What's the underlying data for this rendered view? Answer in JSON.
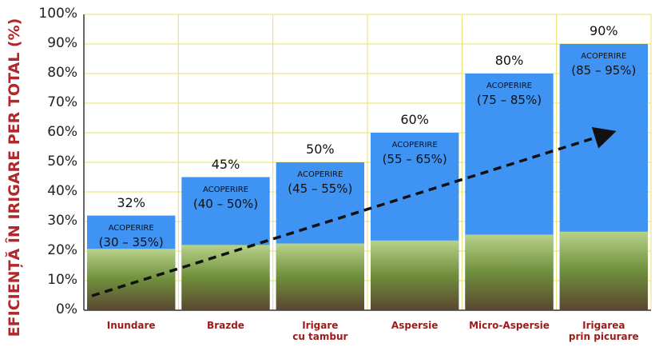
{
  "chart_data": {
    "type": "bar",
    "y_axis_label": "EFICIENȚĂ ÎN IRIGARE PER TOTAL (%)",
    "categories": [
      "Inundare",
      "Brazde",
      "Irigare\ncu tambur",
      "Aspersie",
      "Micro-Aspersie",
      "Irigarea\nprin picurare"
    ],
    "values": [
      32,
      45,
      50,
      60,
      80,
      90
    ],
    "value_labels": [
      "32%",
      "45%",
      "50%",
      "60%",
      "80%",
      "90%"
    ],
    "annotations": [
      {
        "title": "ACOPERIRE",
        "range": "(30 – 35%)"
      },
      {
        "title": "ACOPERIRE",
        "range": "(40 – 50%)"
      },
      {
        "title": "ACOPERIRE",
        "range": "(45 – 55%)"
      },
      {
        "title": "ACOPERIRE",
        "range": "(55 – 65%)"
      },
      {
        "title": "ACOPERIRE",
        "range": "(75 – 85%)"
      },
      {
        "title": "ACOPERIRE",
        "range": "(85 – 95%)"
      }
    ],
    "color": "#3f93f2",
    "ylim": [
      0,
      100
    ],
    "yticks": [
      {
        "value": 0,
        "label": "0%"
      },
      {
        "value": 10,
        "label": "10%"
      },
      {
        "value": 20,
        "label": "20%"
      },
      {
        "value": 30,
        "label": "30%"
      },
      {
        "value": 40,
        "label": "40%"
      },
      {
        "value": 50,
        "label": "50%"
      },
      {
        "value": 60,
        "label": "60%"
      },
      {
        "value": 70,
        "label": "70%"
      },
      {
        "value": 80,
        "label": "80%"
      },
      {
        "value": 90,
        "label": "90%"
      },
      {
        "value": 100,
        "label": "100%"
      }
    ],
    "grid": true
  }
}
